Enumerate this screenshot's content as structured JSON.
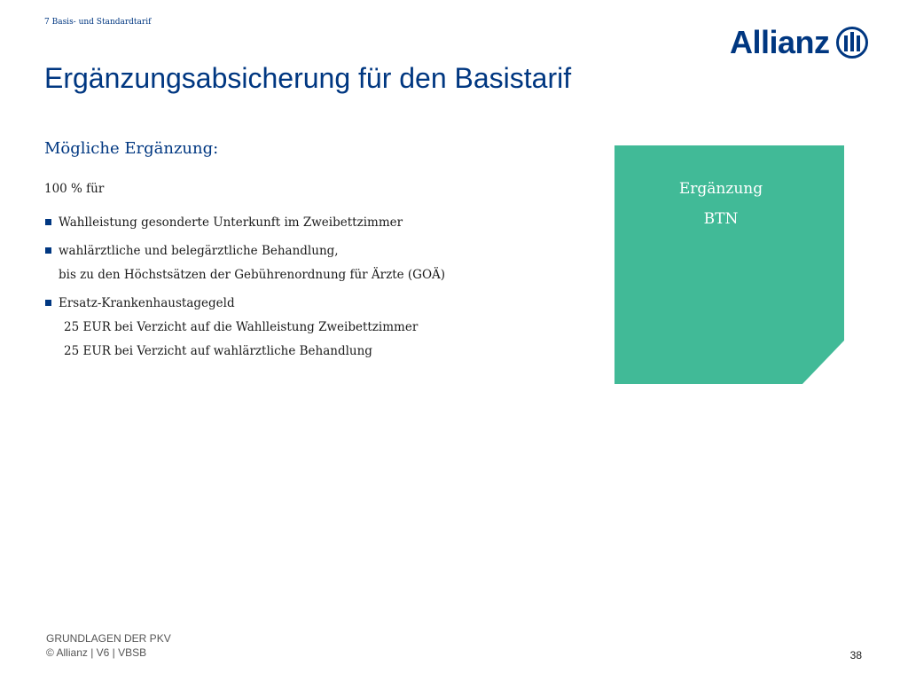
{
  "header": {
    "breadcrumb": "7  Basis- und Standardtarif",
    "logo_text": "Allianz"
  },
  "title": "Ergänzungsabsicherung für den Basistarif",
  "subheading": "Mögliche Ergänzung:",
  "intro": "100 % für",
  "bullets": [
    {
      "lines": [
        "Wahlleistung gesonderte Unterkunft im Zweibettzimmer"
      ]
    },
    {
      "lines": [
        "wahlärztliche und belegärztliche Behandlung,",
        "bis zu den Höchstsätzen der Gebührenordnung für Ärzte (GOÄ)"
      ]
    },
    {
      "lines": [
        "Ersatz-Krankenhaustagegeld",
        "25 EUR bei Verzicht auf die Wahlleistung Zweibettzimmer",
        "25 EUR bei Verzicht auf wahlärztliche Behandlung"
      ]
    }
  ],
  "box": {
    "line1": "Ergänzung",
    "line2": "BTN",
    "color": "#41BA97"
  },
  "footer": {
    "line1": "GRUNDLAGEN DER PKV",
    "line2": "© Allianz | V6 | VBSB",
    "page_number": "38"
  },
  "colors": {
    "brand_blue": "#003781",
    "accent_green": "#41BA97"
  }
}
